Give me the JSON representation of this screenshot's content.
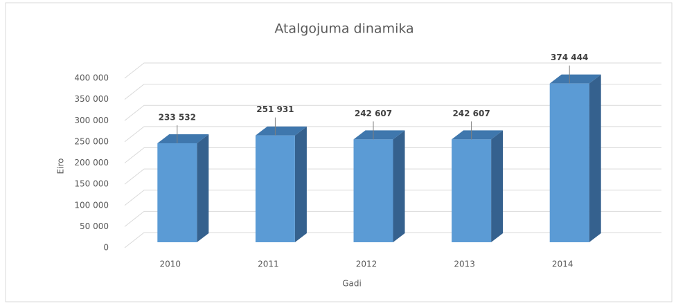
{
  "chart_data": {
    "type": "bar3d",
    "title": "Atalgojuma dinamika",
    "x_label": "Gadi",
    "y_label": "Eiro",
    "categories": [
      "2010",
      "2011",
      "2012",
      "2013",
      "2014"
    ],
    "values": [
      233532,
      251931,
      242607,
      242607,
      374444
    ],
    "value_labels": [
      "233 532",
      "251 931",
      "242 607",
      "242 607",
      "374 444"
    ],
    "color": "#5b9bd5",
    "ylim": [
      0,
      400000
    ],
    "yticks": [
      {
        "value": 0,
        "label": "0"
      },
      {
        "value": 50000,
        "label": "50 000"
      },
      {
        "value": 100000,
        "label": "100 000"
      },
      {
        "value": 150000,
        "label": "150 000"
      },
      {
        "value": 200000,
        "label": "200 000"
      },
      {
        "value": 250000,
        "label": "250 000"
      },
      {
        "value": 300000,
        "label": "300 000"
      },
      {
        "value": 350000,
        "label": "350 000"
      },
      {
        "value": 400000,
        "label": "400 000"
      }
    ],
    "grid": true
  }
}
